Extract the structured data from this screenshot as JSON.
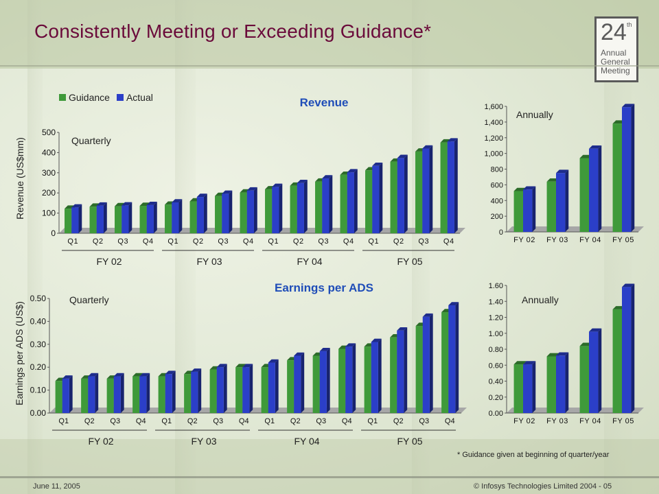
{
  "title": "Consistently Meeting or Exceeding Guidance*",
  "logo": {
    "number": "24",
    "superscript": "th",
    "lines": [
      "Annual",
      "General",
      "Meeting"
    ]
  },
  "legend": {
    "guidance": "Guidance",
    "actual": "Actual"
  },
  "colors": {
    "guidance": "#3f9a3a",
    "actual": "#2b3fc8",
    "title": "#6a0a3a",
    "section_title": "#1f4db8"
  },
  "footer": {
    "date": "June 11, 2005",
    "copyright": "© Infosys Technologies Limited 2004 - 05"
  },
  "footnote": "* Guidance given at beginning of quarter/year",
  "chart_data": [
    {
      "id": "revenue_quarterly",
      "type": "bar",
      "title": "Revenue",
      "annotation": "Quarterly",
      "ylabel": "Revenue   (US$mm)",
      "ylim": [
        0,
        500
      ],
      "yticks": [
        "0",
        "100",
        "200",
        "300",
        "400",
        "500"
      ],
      "categories": [
        "Q1",
        "Q2",
        "Q3",
        "Q4",
        "Q1",
        "Q2",
        "Q3",
        "Q4",
        "Q1",
        "Q2",
        "Q3",
        "Q4",
        "Q1",
        "Q2",
        "Q3",
        "Q4"
      ],
      "groups": [
        "FY 02",
        "FY 03",
        "FY 04",
        "FY 05"
      ],
      "series": [
        {
          "name": "Guidance",
          "values": [
            122,
            132,
            134,
            136,
            142,
            158,
            185,
            202,
            218,
            236,
            256,
            290,
            312,
            355,
            405,
            450
          ]
        },
        {
          "name": "Actual",
          "values": [
            128,
            137,
            138,
            140,
            153,
            180,
            196,
            212,
            230,
            249,
            272,
            302,
            334,
            373,
            420,
            455
          ]
        }
      ]
    },
    {
      "id": "revenue_annual",
      "type": "bar",
      "annotation": "Annually",
      "ylim": [
        0,
        1600
      ],
      "yticks": [
        "0",
        "200",
        "400",
        "600",
        "800",
        "1,000",
        "1,200",
        "1,400",
        "1,600"
      ],
      "categories": [
        "FY 02",
        "FY 03",
        "FY 04",
        "FY 05"
      ],
      "series": [
        {
          "name": "Guidance",
          "values": [
            520,
            640,
            940,
            1380
          ]
        },
        {
          "name": "Actual",
          "values": [
            540,
            750,
            1060,
            1590
          ]
        }
      ]
    },
    {
      "id": "eps_quarterly",
      "type": "bar",
      "title": "Earnings per ADS",
      "annotation": "Quarterly",
      "ylabel": "Earnings per ADS (US$)",
      "ylim": [
        0,
        0.5
      ],
      "yticks": [
        "0.00",
        "0.10",
        "0.20",
        "0.30",
        "0.40",
        "0.50"
      ],
      "categories": [
        "Q1",
        "Q2",
        "Q3",
        "Q4",
        "Q1",
        "Q2",
        "Q3",
        "Q4",
        "Q1",
        "Q2",
        "Q3",
        "Q4",
        "Q1",
        "Q2",
        "Q3",
        "Q4"
      ],
      "groups": [
        "FY 02",
        "FY 03",
        "FY 04",
        "FY 05"
      ],
      "series": [
        {
          "name": "Guidance",
          "values": [
            0.14,
            0.15,
            0.15,
            0.16,
            0.16,
            0.17,
            0.19,
            0.2,
            0.2,
            0.23,
            0.25,
            0.28,
            0.29,
            0.33,
            0.38,
            0.44
          ]
        },
        {
          "name": "Actual",
          "values": [
            0.15,
            0.16,
            0.16,
            0.16,
            0.17,
            0.18,
            0.2,
            0.2,
            0.22,
            0.25,
            0.27,
            0.29,
            0.31,
            0.36,
            0.42,
            0.47
          ]
        }
      ]
    },
    {
      "id": "eps_annual",
      "type": "bar",
      "annotation": "Annually",
      "ylim": [
        0,
        1.6
      ],
      "yticks": [
        "0.00",
        "0.20",
        "0.40",
        "0.60",
        "0.80",
        "1.00",
        "1.20",
        "1.40",
        "1.60"
      ],
      "categories": [
        "FY 02",
        "FY 03",
        "FY 04",
        "FY 05"
      ],
      "series": [
        {
          "name": "Guidance",
          "values": [
            0.61,
            0.71,
            0.84,
            1.3
          ]
        },
        {
          "name": "Actual",
          "values": [
            0.61,
            0.72,
            1.02,
            1.58
          ]
        }
      ]
    }
  ]
}
